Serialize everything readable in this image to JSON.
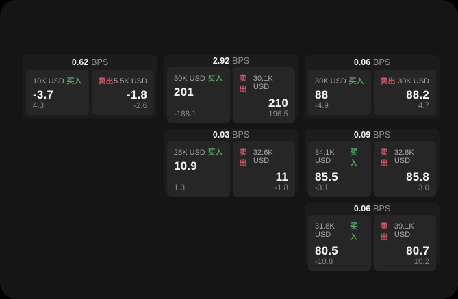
{
  "colors": {
    "page_bg": "#151515",
    "card_bg": "#1c1c1c",
    "panel_bg": "#262626",
    "buy": "#56a868",
    "sell": "#c75562"
  },
  "cards": [
    {
      "bps_value": "0.62",
      "bps_unit": "BPS",
      "buy": {
        "amount": "10K USD",
        "side_label": "买入",
        "value": "-3.7",
        "sub": "4.3"
      },
      "sell": {
        "side_label": "卖出",
        "amount": "5.5K USD",
        "value": "-1.8",
        "sub": "-2.6"
      }
    },
    {
      "bps_value": "2.92",
      "bps_unit": "BPS",
      "buy": {
        "amount": "30K USD",
        "side_label": "买入",
        "value": "201",
        "sub": "-188.1"
      },
      "sell": {
        "side_label": "卖出",
        "amount": "30.1K USD",
        "value": "210",
        "sub": "196.5"
      }
    },
    {
      "bps_value": "0.06",
      "bps_unit": "BPS",
      "buy": {
        "amount": "30K USD",
        "side_label": "买入",
        "value": "88",
        "sub": "-4.9"
      },
      "sell": {
        "side_label": "卖出",
        "amount": "30K USD",
        "value": "88.2",
        "sub": "4.7"
      }
    },
    {
      "bps_value": "0.03",
      "bps_unit": "BPS",
      "buy": {
        "amount": "28K USD",
        "side_label": "买入",
        "value": "10.9",
        "sub": "1.3"
      },
      "sell": {
        "side_label": "卖出",
        "amount": "32.6K USD",
        "value": "11",
        "sub": "-1.8"
      }
    },
    {
      "bps_value": "0.09",
      "bps_unit": "BPS",
      "buy": {
        "amount": "34.1K USD",
        "side_label": "买入",
        "value": "85.5",
        "sub": "-3.1"
      },
      "sell": {
        "side_label": "卖出",
        "amount": "32.8K USD",
        "value": "85.8",
        "sub": "3.0"
      }
    },
    {
      "bps_value": "0.06",
      "bps_unit": "BPS",
      "buy": {
        "amount": "31.8K USD",
        "side_label": "买入",
        "value": "80.5",
        "sub": "-10.8"
      },
      "sell": {
        "side_label": "卖出",
        "amount": "39.1K USD",
        "value": "80.7",
        "sub": "10.2"
      }
    }
  ]
}
